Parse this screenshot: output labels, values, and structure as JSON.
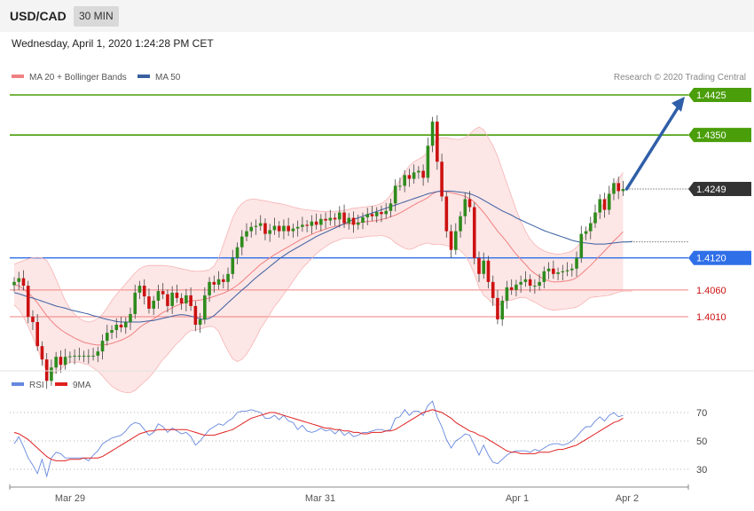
{
  "header": {
    "symbol": "USD/CAD",
    "interval": "30 MIN"
  },
  "timestamp": "Wednesday, April 1, 2020 1:24:28 PM CET",
  "legend": {
    "bollinger": "MA 20 + Bollinger Bands",
    "ma50": "MA 50",
    "credit": "Research © 2020 Trading Central"
  },
  "rsi_legend": {
    "rsi": "RSI",
    "ma9": "9MA"
  },
  "colors": {
    "bull": "#2e8b1d",
    "bear": "#cc1111",
    "ma50": "#3a5fa0",
    "bb": "#f08080",
    "band_fill": "#fde2e2",
    "resistance": "#4a9e0a",
    "pivot": "#2f6fe8",
    "support": "#f08080",
    "arrow": "#2f5fa8",
    "rsi": "#6688dd",
    "rsi_ma": "#e02020"
  },
  "chart_data": [
    {
      "type": "candlestick",
      "title": "USD/CAD",
      "ylim": [
        1.3835,
        1.449
      ],
      "x_ticks": [
        "Mar 29",
        "Mar 31",
        "Apr 1",
        "Apr 2"
      ],
      "levels": [
        {
          "value": 1.4425,
          "label": "1.4425",
          "kind": "resistance"
        },
        {
          "value": 1.435,
          "label": "1.4350",
          "kind": "resistance"
        },
        {
          "value": 1.4249,
          "label": "1.4249",
          "kind": "last"
        },
        {
          "value": 1.412,
          "label": "1.4120",
          "kind": "pivot"
        },
        {
          "value": 1.406,
          "label": "1.4060",
          "kind": "support"
        },
        {
          "value": 1.401,
          "label": "1.4010",
          "kind": "support"
        }
      ],
      "close": [
        1.4075,
        1.4082,
        1.4068,
        1.401,
        1.4,
        1.3955,
        1.393,
        1.389,
        1.3915,
        1.3935,
        1.392,
        1.3935,
        1.3936,
        1.3937,
        1.3937,
        1.3937,
        1.3937,
        1.3937,
        1.3945,
        1.3965,
        1.398,
        1.3985,
        1.3995,
        1.399,
        1.4,
        1.4015,
        1.4055,
        1.4068,
        1.4048,
        1.4025,
        1.404,
        1.4058,
        1.4052,
        1.403,
        1.4055,
        1.4045,
        1.4035,
        1.405,
        1.403,
        1.3995,
        1.4005,
        1.405,
        1.4075,
        1.407,
        1.408,
        1.4075,
        1.409,
        1.412,
        1.414,
        1.416,
        1.417,
        1.4178,
        1.418,
        1.4185,
        1.4165,
        1.4172,
        1.418,
        1.417,
        1.418,
        1.417,
        1.4175,
        1.4178,
        1.4182,
        1.418,
        1.4188,
        1.4182,
        1.4193,
        1.419,
        1.4195,
        1.4192,
        1.4205,
        1.4185,
        1.4195,
        1.4182,
        1.4186,
        1.4196,
        1.4202,
        1.4198,
        1.4206,
        1.4202,
        1.4208,
        1.4222,
        1.4255,
        1.4255,
        1.4275,
        1.4268,
        1.428,
        1.4283,
        1.427,
        1.433,
        1.4375,
        1.43,
        1.4235,
        1.417,
        1.4135,
        1.417,
        1.4198,
        1.423,
        1.4215,
        1.412,
        1.409,
        1.4115,
        1.4075,
        1.4045,
        1.4005,
        1.404,
        1.4065,
        1.406,
        1.407,
        1.4075,
        1.408,
        1.4068,
        1.4068,
        1.4075,
        1.4095,
        1.41,
        1.409,
        1.4093,
        1.4095,
        1.4097,
        1.41,
        1.412,
        1.4165,
        1.417,
        1.4185,
        1.4205,
        1.423,
        1.421,
        1.424,
        1.426,
        1.4245,
        1.4249
      ],
      "ma20": [
        1.407,
        1.4068,
        1.4062,
        1.4055,
        1.4046,
        1.4036,
        1.4024,
        1.4012,
        1.4002,
        1.3993,
        1.3986,
        1.398,
        1.3975,
        1.397,
        1.3966,
        1.3962,
        1.396,
        1.3958,
        1.3957,
        1.3957,
        1.3958,
        1.396,
        1.3963,
        1.3966,
        1.397,
        1.3975,
        1.3982,
        1.399,
        1.3996,
        1.4001,
        1.4006,
        1.4012,
        1.4018,
        1.4022,
        1.4027,
        1.4031,
        1.4034,
        1.4038,
        1.404,
        1.404,
        1.4041,
        1.4043,
        1.4045,
        1.4048,
        1.4051,
        1.4054,
        1.4058,
        1.4063,
        1.4069,
        1.4076,
        1.4084,
        1.4092,
        1.41,
        1.4108,
        1.4114,
        1.412,
        1.4126,
        1.4131,
        1.4136,
        1.4141,
        1.4146,
        1.4151,
        1.4156,
        1.416,
        1.4164,
        1.4168,
        1.4171,
        1.4174,
        1.4177,
        1.4179,
        1.4181,
        1.4183,
        1.4184,
        1.4185,
        1.4186,
        1.4187,
        1.4188,
        1.4189,
        1.419,
        1.4192,
        1.4194,
        1.4197,
        1.42,
        1.4204,
        1.4209,
        1.4214,
        1.4219,
        1.4224,
        1.4228,
        1.4233,
        1.424,
        1.4244,
        1.4245,
        1.4244,
        1.4242,
        1.424,
        1.4238,
        1.4235,
        1.4231,
        1.4225,
        1.4215,
        1.4205,
        1.4194,
        1.4182,
        1.417,
        1.416,
        1.415,
        1.4138,
        1.4127,
        1.4117,
        1.4108,
        1.4098,
        1.4091,
        1.4085,
        1.408,
        1.4077,
        1.4075,
        1.4075,
        1.4076,
        1.4077,
        1.4079,
        1.4083,
        1.409,
        1.4098,
        1.4106,
        1.4115,
        1.4124,
        1.4133,
        1.4142,
        1.4152,
        1.416,
        1.4169
      ],
      "bb_upper": [
        1.4108,
        1.4112,
        1.4115,
        1.4118,
        1.412,
        1.4121,
        1.412,
        1.4115,
        1.41,
        1.408,
        1.406,
        1.404,
        1.4025,
        1.4015,
        1.4007,
        1.4002,
        1.4,
        1.4002,
        1.4006,
        1.4015,
        1.4027,
        1.404,
        1.4052,
        1.4062,
        1.4072,
        1.4082,
        1.4092,
        1.41,
        1.4104,
        1.4106,
        1.4106,
        1.4106,
        1.4106,
        1.4105,
        1.4104,
        1.4102,
        1.41,
        1.4098,
        1.4096,
        1.4095,
        1.4095,
        1.4096,
        1.4098,
        1.4105,
        1.412,
        1.4145,
        1.417,
        1.4195,
        1.4212,
        1.4222,
        1.4228,
        1.423,
        1.423,
        1.4228,
        1.4227,
        1.4225,
        1.4223,
        1.4222,
        1.422,
        1.4218,
        1.4215,
        1.4213,
        1.4211,
        1.421,
        1.4209,
        1.4208,
        1.4207,
        1.4207,
        1.4207,
        1.4207,
        1.4208,
        1.4209,
        1.4211,
        1.4213,
        1.4214,
        1.4215,
        1.4216,
        1.4217,
        1.4219,
        1.4222,
        1.4228,
        1.4238,
        1.4252,
        1.4265,
        1.428,
        1.4292,
        1.43,
        1.4305,
        1.431,
        1.4318,
        1.4335,
        1.4342,
        1.4345,
        1.4345,
        1.4343,
        1.4342,
        1.4342,
        1.4345,
        1.4352,
        1.436,
        1.4365,
        1.436,
        1.4345,
        1.433,
        1.431,
        1.4285,
        1.426,
        1.4235,
        1.421,
        1.4188,
        1.417,
        1.4155,
        1.4145,
        1.4138,
        1.4133,
        1.413,
        1.4128,
        1.4127,
        1.4128,
        1.413,
        1.4133,
        1.414,
        1.415,
        1.4165,
        1.418,
        1.4195,
        1.421,
        1.4225,
        1.424,
        1.4255,
        1.4268,
        1.428
      ],
      "bb_lower": [
        1.4032,
        1.4024,
        1.4009,
        1.3992,
        1.3972,
        1.3951,
        1.3928,
        1.3909,
        1.3904,
        1.3906,
        1.3912,
        1.392,
        1.3925,
        1.3925,
        1.3925,
        1.3922,
        1.392,
        1.3914,
        1.3908,
        1.3899,
        1.3889,
        1.388,
        1.3874,
        1.387,
        1.3868,
        1.3868,
        1.3872,
        1.388,
        1.3888,
        1.3896,
        1.3906,
        1.3918,
        1.393,
        1.3939,
        1.395,
        1.396,
        1.3968,
        1.3978,
        1.3984,
        1.3985,
        1.3987,
        1.399,
        1.3992,
        1.3991,
        1.3982,
        1.3963,
        1.3946,
        1.3931,
        1.3926,
        1.393,
        1.394,
        1.3954,
        1.397,
        1.3988,
        1.4001,
        1.4015,
        1.4029,
        1.404,
        1.4052,
        1.4064,
        1.4077,
        1.4089,
        1.4101,
        1.411,
        1.4119,
        1.4128,
        1.4135,
        1.4141,
        1.4147,
        1.4151,
        1.4154,
        1.4157,
        1.4157,
        1.4157,
        1.4158,
        1.4159,
        1.416,
        1.4161,
        1.4161,
        1.4162,
        1.416,
        1.4156,
        1.4148,
        1.4143,
        1.4138,
        1.4136,
        1.4138,
        1.4143,
        1.4146,
        1.4148,
        1.4145,
        1.4146,
        1.4145,
        1.4143,
        1.4141,
        1.4138,
        1.4134,
        1.4125,
        1.411,
        1.409,
        1.4065,
        1.405,
        1.4043,
        1.4034,
        1.403,
        1.4035,
        1.404,
        1.4041,
        1.4044,
        1.4046,
        1.4046,
        1.4041,
        1.4037,
        1.4032,
        1.4027,
        1.4024,
        1.4022,
        1.4023,
        1.4024,
        1.4025,
        1.4026,
        1.4028,
        1.4033,
        1.404,
        1.4046,
        1.4047,
        1.4048,
        1.4049,
        1.405,
        1.4053,
        1.4056,
        1.4058,
        1.4058,
        1.4058
      ],
      "ma50": [
        1.4055,
        1.4053,
        1.405,
        1.4047,
        1.4045,
        1.4042,
        1.4039,
        1.4036,
        1.4033,
        1.403,
        1.4028,
        1.4026,
        1.4023,
        1.4021,
        1.4019,
        1.4017,
        1.4015,
        1.4012,
        1.401,
        1.4007,
        1.4005,
        1.4003,
        1.4001,
        1.4,
        1.4,
        1.4,
        1.4,
        1.4,
        1.4001,
        1.4002,
        1.4003,
        1.4005,
        1.4007,
        1.4009,
        1.4011,
        1.4013,
        1.4014,
        1.4013,
        1.4011,
        1.4009,
        1.4006,
        1.4005,
        1.4007,
        1.4012,
        1.402,
        1.4028,
        1.4036,
        1.4044,
        1.4052,
        1.406,
        1.4067,
        1.4075,
        1.4083,
        1.409,
        1.4097,
        1.4104,
        1.4111,
        1.4118,
        1.4124,
        1.413,
        1.4135,
        1.414,
        1.4145,
        1.415,
        1.4155,
        1.416,
        1.4164,
        1.4168,
        1.4172,
        1.4176,
        1.418,
        1.4184,
        1.4188,
        1.4192,
        1.4195,
        1.4198,
        1.4201,
        1.4204,
        1.4207,
        1.421,
        1.4213,
        1.4216,
        1.4219,
        1.4222,
        1.4225,
        1.4228,
        1.4231,
        1.4234,
        1.4237,
        1.424,
        1.4242,
        1.4244,
        1.4245,
        1.4245,
        1.4245,
        1.4244,
        1.4243,
        1.4242,
        1.424,
        1.4237,
        1.4233,
        1.4228,
        1.4223,
        1.4218,
        1.4213,
        1.4208,
        1.4204,
        1.42,
        1.4195,
        1.4191,
        1.4187,
        1.4183,
        1.4179,
        1.4175,
        1.4171,
        1.4168,
        1.4165,
        1.4162,
        1.4159,
        1.4156,
        1.4153,
        1.4151,
        1.4149,
        1.4148,
        1.4147,
        1.4146,
        1.4146,
        1.4146,
        1.4147,
        1.4148,
        1.4149,
        1.415,
        1.415,
        1.4151
      ]
    },
    {
      "type": "line",
      "title": "RSI",
      "ylim": [
        20,
        80
      ],
      "y_ticks": [
        70,
        50,
        30
      ],
      "series": [
        {
          "name": "RSI",
          "values": [
            48,
            53,
            46,
            38,
            33,
            27,
            37,
            25,
            38,
            42,
            41,
            38,
            38,
            38,
            38,
            38,
            36,
            40,
            43,
            48,
            50,
            52,
            53,
            54,
            57,
            61,
            63,
            62,
            58,
            54,
            56,
            62,
            60,
            56,
            59,
            57,
            55,
            56,
            53,
            47,
            50,
            54,
            58,
            60,
            62,
            61,
            64,
            66,
            70,
            71,
            71,
            72,
            71,
            70,
            66,
            66,
            68,
            65,
            68,
            64,
            63,
            58,
            61,
            57,
            56,
            57,
            59,
            57,
            58,
            55,
            58,
            54,
            56,
            53,
            54,
            56,
            56,
            57,
            58,
            58,
            57,
            58,
            66,
            67,
            72,
            68,
            71,
            71,
            68,
            75,
            78,
            67,
            60,
            51,
            45,
            50,
            52,
            55,
            54,
            47,
            40,
            47,
            40,
            35,
            34,
            37,
            40,
            42,
            43,
            43,
            43,
            42,
            44,
            43,
            45,
            47,
            48,
            48,
            47,
            48,
            50,
            53,
            57,
            60,
            60,
            64,
            67,
            64,
            68,
            70,
            67,
            68
          ]
        },
        {
          "name": "9MA",
          "values": [
            56,
            55,
            53,
            51,
            48,
            45,
            42,
            39,
            37,
            36,
            36,
            36,
            37,
            37,
            37,
            38,
            38,
            38,
            38,
            39,
            41,
            43,
            45,
            47,
            49,
            51,
            53,
            55,
            56,
            57,
            57,
            58,
            58,
            58,
            58,
            58,
            58,
            58,
            57,
            56,
            55,
            54,
            54,
            54,
            55,
            56,
            57,
            58,
            60,
            62,
            64,
            66,
            67,
            68,
            69,
            70,
            70,
            69,
            68,
            67,
            66,
            65,
            64,
            63,
            62,
            61,
            60,
            59,
            59,
            58,
            58,
            57,
            57,
            56,
            56,
            55,
            55,
            56,
            56,
            56,
            57,
            57,
            58,
            60,
            62,
            64,
            66,
            68,
            70,
            71,
            72,
            71,
            70,
            68,
            66,
            63,
            61,
            59,
            57,
            56,
            54,
            53,
            51,
            49,
            47,
            45,
            43,
            42,
            42,
            41,
            41,
            41,
            41,
            42,
            42,
            42,
            43,
            44,
            44,
            45,
            46,
            47,
            49,
            51,
            53,
            55,
            57,
            59,
            61,
            63,
            64,
            66
          ]
        }
      ]
    }
  ]
}
